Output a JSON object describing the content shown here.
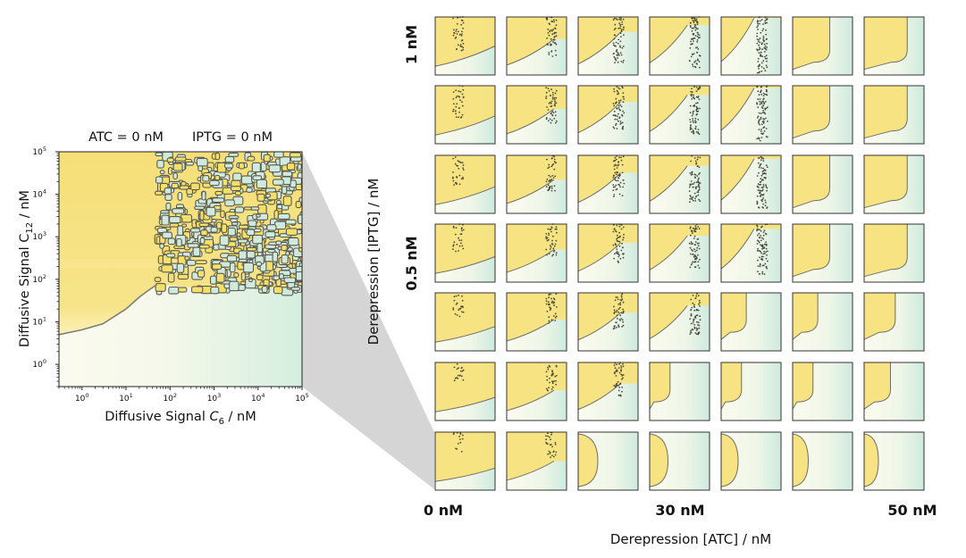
{
  "chart_data": [
    {
      "type": "heatmap",
      "title_left": "ATC = 0 nM",
      "title_right": "IPTG = 0 nM",
      "xlabel_prefix": "Diffusive Signal ",
      "xlabel_sym": "C",
      "xlabel_sub": "6",
      "xlabel_unit": " / nM",
      "ylabel_prefix": "Diffusive Signal C",
      "ylabel_sub": "12",
      "ylabel_unit": " / nM",
      "xscale": "log",
      "yscale": "log",
      "xlim": [
        0.3,
        100000
      ],
      "ylim": [
        0.3,
        100000
      ],
      "xticks": [
        1,
        10,
        100,
        1000,
        10000,
        100000
      ],
      "yticks": [
        1,
        10,
        100,
        1000,
        10000,
        100000
      ],
      "x_tick_exps": [
        "0",
        "1",
        "2",
        "3",
        "4",
        "5"
      ],
      "y_tick_exps": [
        "0",
        "1",
        "2",
        "3",
        "4",
        "5"
      ],
      "tick_base": "10",
      "boundary": {
        "x": [
          0.3,
          1,
          3,
          10,
          20,
          30,
          50
        ],
        "y": [
          5,
          6.5,
          9,
          20,
          38,
          52,
          75
        ]
      },
      "colors": {
        "high": "#f7e27a",
        "low": "#d8efe3",
        "mid": "#fbfbf0",
        "contour": "#3b3b3b"
      }
    },
    {
      "type": "heatmap",
      "grid": "small-multiples 7x7",
      "xlabel": "Derepression [ATC] / nM",
      "ylabel": "Derepression [IPTG] / nM",
      "x_ticklabels": [
        "0 nM",
        "30 nM",
        "50 nM"
      ],
      "y_ticklabels": [
        "1 nM",
        "0.5 nM"
      ],
      "zoom_source": "bottom-left panel (ATC = 0 nM, IPTG = 0 nM)"
    }
  ]
}
